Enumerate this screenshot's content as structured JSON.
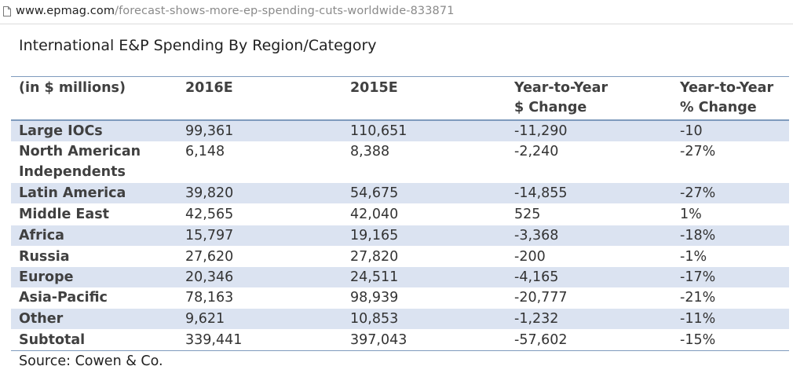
{
  "browser": {
    "url_host": "www.epmag.com",
    "url_path": "/forecast-shows-more-ep-spending-cuts-worldwide-833871"
  },
  "table": {
    "title": "International E&P Spending By Region/Category",
    "headers": {
      "col1": "(in $ millions)",
      "col2": "2016E",
      "col3": "2015E",
      "col4_line1": "Year-to-Year",
      "col4_line2": "$ Change",
      "col5_line1": "Year-to-Year",
      "col5_line2": "% Change"
    },
    "rows": [
      {
        "label": "Large IOCs",
        "v2016": "99,361",
        "v2015": "110,651",
        "dollar_change": "-11,290",
        "pct_change": "-10"
      },
      {
        "label_line1": "North American",
        "label_line2": "Independents",
        "v2016": "6,148",
        "v2015": "8,388",
        "dollar_change": "-2,240",
        "pct_change": "-27%"
      },
      {
        "label": "Latin America",
        "v2016": "39,820",
        "v2015": "54,675",
        "dollar_change": "-14,855",
        "pct_change": "-27%"
      },
      {
        "label": "Middle East",
        "v2016": "42,565",
        "v2015": "42,040",
        "dollar_change": "525",
        "pct_change": "1%"
      },
      {
        "label": "Africa",
        "v2016": "15,797",
        "v2015": "19,165",
        "dollar_change": "-3,368",
        "pct_change": "-18%"
      },
      {
        "label": "Russia",
        "v2016": "27,620",
        "v2015": "27,820",
        "dollar_change": "-200",
        "pct_change": "-1%"
      },
      {
        "label": "Europe",
        "v2016": "20,346",
        "v2015": "24,511",
        "dollar_change": "-4,165",
        "pct_change": "-17%"
      },
      {
        "label": "Asia-Pacific",
        "v2016": "78,163",
        "v2015": "98,939",
        "dollar_change": "-20,777",
        "pct_change": "-21%"
      },
      {
        "label": "Other",
        "v2016": "9,621",
        "v2015": "10,853",
        "dollar_change": "-1,232",
        "pct_change": "-11%"
      },
      {
        "label": "Subtotal",
        "v2016": "339,441",
        "v2015": "397,043",
        "dollar_change": "-57,602",
        "pct_change": "-15%"
      }
    ],
    "source": "Source: Cowen & Co."
  },
  "colors": {
    "row_shade": "#dbe3f1",
    "rule": "#7f9bbd"
  }
}
